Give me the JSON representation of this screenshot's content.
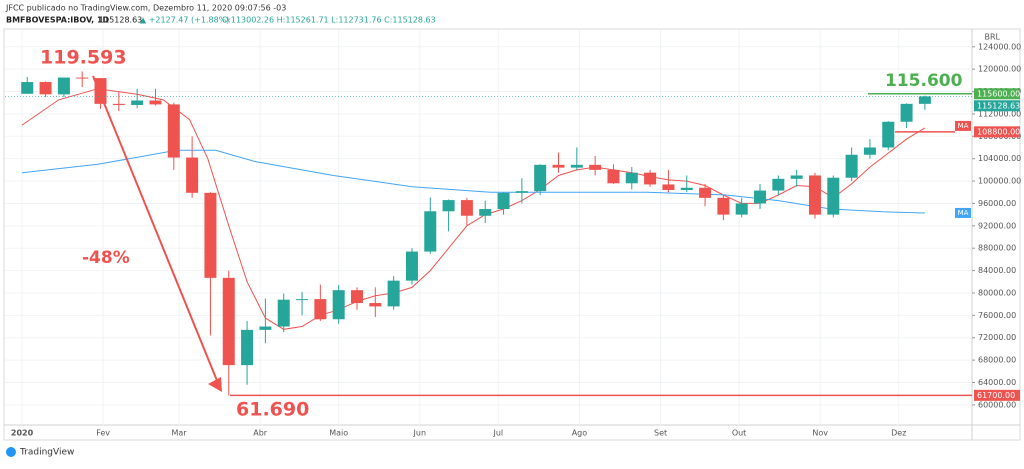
{
  "header": {
    "line1": "JFCC publicado no TradingView.com, Dezembro 11, 2020 09:07:56 -03",
    "symbol": "BMFBOVESPA:IBOV, 1D",
    "last": "115128.63",
    "change": "▲ +2127.47 (+1.88%)",
    "ohlc": "O:113002.26 H:115261.71 L:112731.76 C:115128.63"
  },
  "footer": {
    "brand": "TradingView"
  },
  "chart_data": {
    "type": "candlestick",
    "currency": "BRL",
    "x": [
      3,
      10,
      17,
      24,
      31,
      38,
      45,
      52,
      59,
      66,
      73,
      80,
      87,
      94,
      101,
      108,
      115,
      122,
      129,
      136,
      143,
      150,
      157,
      164,
      171,
      178,
      185,
      192,
      199,
      206,
      213,
      220,
      227,
      234,
      241,
      248,
      255,
      262,
      269,
      276,
      283,
      290,
      297,
      304,
      311,
      318,
      325,
      332,
      339,
      346
    ],
    "open": [
      115600,
      117700,
      115500,
      118500,
      118400,
      113800,
      113600,
      114400,
      113700,
      104200,
      97900,
      82700,
      67100,
      73400,
      74000,
      78800,
      78900,
      75300,
      80500,
      78200,
      77600,
      82200,
      87400,
      94600,
      96600,
      93800,
      95000,
      97900,
      98200,
      102900,
      102400,
      102900,
      102000,
      99600,
      101500,
      99400,
      98400,
      98800,
      97000,
      94000,
      96000,
      98300,
      100400,
      101000,
      94000,
      100600,
      104700,
      106000,
      110600,
      113800
    ],
    "high": [
      118600,
      117800,
      118500,
      119593,
      118400,
      116000,
      116500,
      116500,
      114000,
      108000,
      98000,
      84000,
      75000,
      79000,
      79900,
      80200,
      81500,
      81400,
      81000,
      81000,
      83000,
      88000,
      97100,
      96700,
      97000,
      96500,
      98000,
      100500,
      103000,
      105100,
      106000,
      104500,
      103000,
      102500,
      102000,
      102000,
      101000,
      99500,
      97500,
      97000,
      99500,
      101000,
      102000,
      101500,
      101000,
      106000,
      107500,
      110700,
      113900,
      115262
    ],
    "low": [
      115600,
      115000,
      115000,
      116800,
      112900,
      112500,
      113000,
      113500,
      102000,
      97000,
      72400,
      61690,
      63600,
      71000,
      73000,
      76000,
      75000,
      74500,
      77000,
      75700,
      77000,
      81500,
      87000,
      91000,
      92000,
      92500,
      94000,
      96000,
      97500,
      101500,
      102000,
      101000,
      99500,
      98500,
      99000,
      98000,
      98000,
      95500,
      93000,
      93500,
      95000,
      97500,
      99000,
      93300,
      93500,
      100000,
      104000,
      105500,
      109500,
      112732
    ],
    "close": [
      117700,
      115500,
      118500,
      118400,
      113800,
      113600,
      114400,
      113700,
      104200,
      97900,
      82700,
      67100,
      73400,
      74000,
      78800,
      78900,
      75300,
      80500,
      78200,
      77600,
      82200,
      87400,
      94600,
      96600,
      93800,
      95000,
      97900,
      98200,
      102900,
      102400,
      102900,
      102000,
      99600,
      101500,
      99400,
      98400,
      98800,
      97000,
      94000,
      96000,
      98300,
      100400,
      101000,
      94000,
      100600,
      104700,
      106000,
      110600,
      113800,
      115129
    ],
    "up_color": "#26a69a",
    "down_color": "#ef5350",
    "lines": [
      {
        "name": "MA",
        "color": "#ef5350",
        "x": [
          1,
          15,
          30,
          45,
          55,
          65,
          72,
          80,
          87,
          94,
          101,
          108,
          115,
          122,
          129,
          136,
          143,
          150,
          157,
          164,
          171,
          178,
          185,
          192,
          199,
          206,
          213,
          220,
          227,
          234,
          241,
          248,
          255,
          262,
          269,
          276,
          283,
          290,
          297,
          304,
          311,
          318,
          325,
          332,
          339,
          346
        ],
        "values": [
          110000,
          114500,
          116500,
          115500,
          114500,
          111000,
          104000,
          92000,
          82000,
          75500,
          73500,
          74000,
          76000,
          77000,
          78500,
          79500,
          80000,
          81000,
          84000,
          88000,
          92000,
          94000,
          95000,
          96500,
          98500,
          101000,
          102000,
          102500,
          102000,
          101500,
          100800,
          100200,
          100000,
          99200,
          97500,
          96000,
          96000,
          97500,
          99200,
          99000,
          97000,
          99500,
          102500,
          105000,
          107500,
          109500
        ]
      },
      {
        "name": "MA",
        "color": "#42a5f5",
        "x": [
          1,
          30,
          60,
          75,
          90,
          120,
          150,
          180,
          210,
          240,
          270,
          290,
          310,
          330,
          346
        ],
        "values": [
          101500,
          103000,
          105500,
          105500,
          103500,
          101000,
          99000,
          98000,
          98000,
          98000,
          97500,
          96500,
          95000,
          94500,
          94300
        ]
      }
    ],
    "xlim": [
      -5.5,
      364
    ],
    "xticks": [
      {
        "value": 1,
        "label": "2020"
      },
      {
        "value": 32,
        "label": "Fev"
      },
      {
        "value": 61,
        "label": "Mar"
      },
      {
        "value": 92,
        "label": "Abr"
      },
      {
        "value": 122,
        "label": "Maio"
      },
      {
        "value": 153,
        "label": "Jun"
      },
      {
        "value": 183,
        "label": "Jul"
      },
      {
        "value": 214,
        "label": "Ago"
      },
      {
        "value": 245,
        "label": "Set"
      },
      {
        "value": 275,
        "label": "Out"
      },
      {
        "value": 306,
        "label": "Nov"
      },
      {
        "value": 336,
        "label": "Dez"
      }
    ],
    "ylim": [
      56400,
      127000
    ],
    "yticks": [
      {
        "value": 60000,
        "label": "60000.00"
      },
      {
        "value": 64000,
        "label": "64000.00"
      },
      {
        "value": 68000,
        "label": "68000.00"
      },
      {
        "value": 72000,
        "label": "72000.00"
      },
      {
        "value": 76000,
        "label": "76000.00"
      },
      {
        "value": 80000,
        "label": "80000.00"
      },
      {
        "value": 84000,
        "label": "84000.00"
      },
      {
        "value": 88000,
        "label": "88000.00"
      },
      {
        "value": 92000,
        "label": "92000.00"
      },
      {
        "value": 96000,
        "label": "96000.00"
      },
      {
        "value": 100000,
        "label": "100000.00"
      },
      {
        "value": 104000,
        "label": "104000.00"
      },
      {
        "value": 108000,
        "label": "108000.00"
      },
      {
        "value": 112000,
        "label": "112000.00"
      },
      {
        "value": 116000,
        "label": "116000.00"
      },
      {
        "value": 120000,
        "label": "120000.00"
      },
      {
        "value": 124000,
        "label": "124000.00"
      }
    ],
    "grid": true,
    "price_lines": [
      {
        "value": 115600,
        "label": "115600.00",
        "color": "#4caf50"
      },
      {
        "value": 115128.63,
        "label": "115128.63",
        "color": "#26a69a"
      },
      {
        "value": 108800,
        "label": "108800.00",
        "color": "#ef5350"
      },
      {
        "value": 61700,
        "label": "61700.00",
        "color": "#ef5350"
      }
    ],
    "annotations": [
      {
        "text": "119.593",
        "color": "#ef5350"
      },
      {
        "text": "-48%",
        "color": "#ef5350"
      },
      {
        "text": "61.690",
        "color": "#ef5350"
      },
      {
        "text": "115.600",
        "color": "#4caf50"
      }
    ]
  }
}
